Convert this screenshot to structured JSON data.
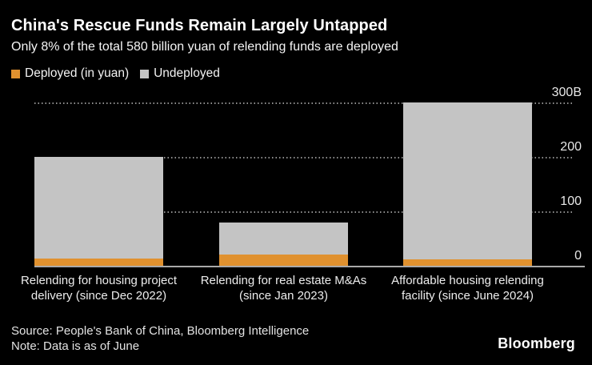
{
  "chart_data": {
    "type": "bar",
    "stacked": true,
    "title": "China's Rescue Funds Remain Largely Untapped",
    "subtitle": "Only 8% of the total 580 billion yuan of relending funds are deployed",
    "unit": "billion yuan",
    "categories": [
      "Relending for housing project delivery (since Dec 2022)",
      "Relending for real estate M&As (since Jan 2023)",
      "Affordable housing relending facility (since June 2024)"
    ],
    "series": [
      {
        "name": "Deployed (in yuan)",
        "color": "#E0912F",
        "values": [
          13,
          21,
          12
        ]
      },
      {
        "name": "Undeployed",
        "color": "#C4C4C4",
        "values": [
          187,
          59,
          288
        ]
      }
    ],
    "totals": [
      200,
      80,
      300
    ],
    "yticks": [
      {
        "label": "300B",
        "value": 300
      },
      {
        "label": "200",
        "value": 200
      },
      {
        "label": "100",
        "value": 100
      },
      {
        "label": "0",
        "value": 0
      }
    ],
    "ylim": [
      0,
      320
    ],
    "grid": "horizontal-dotted",
    "legend_position": "top-left",
    "value_axis_side": "right"
  },
  "footer": {
    "source": "Source: People's Bank of China, Bloomberg Intelligence",
    "note": "Note: Data is as of June",
    "brand": "Bloomberg"
  },
  "colors": {
    "background": "#000000",
    "deployed_orange": "#E0912F",
    "undeployed_gray": "#C4C4C4",
    "gridline": "#8F8F8F",
    "baseline": "#A9A9A9",
    "title_text": "#FFFFFF",
    "body_text": "#F2F2F2"
  }
}
